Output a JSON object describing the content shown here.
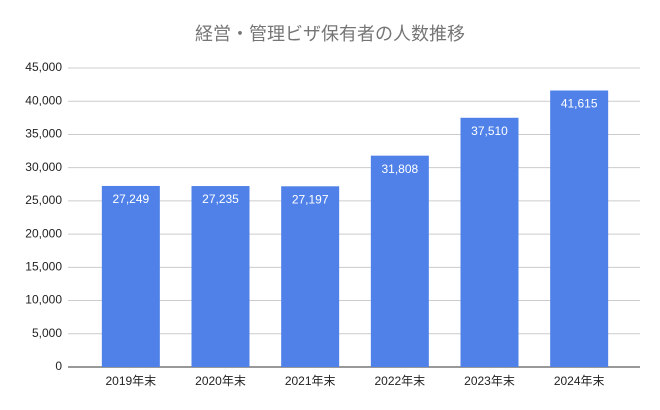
{
  "chart_data": {
    "type": "bar",
    "title": "経営・管理ビザ保有者の人数推移",
    "categories": [
      "2019年末",
      "2020年末",
      "2021年末",
      "2022年末",
      "2023年末",
      "2024年末"
    ],
    "values": [
      27249,
      27235,
      27197,
      31808,
      37510,
      41615
    ],
    "value_labels": [
      "27,249",
      "27,235",
      "27,197",
      "31,808",
      "37,510",
      "41,615"
    ],
    "color": "#4f81e8",
    "ylim": [
      0,
      45000
    ],
    "yticks": [
      0,
      {
        "value": 5000,
        "label": "5,000"
      },
      {
        "value": 10000,
        "label": "10,000"
      },
      {
        "value": 15000,
        "label": "15,000"
      },
      {
        "value": 20000,
        "label": "20,000"
      },
      {
        "value": 25000,
        "label": "25,000"
      },
      {
        "value": 30000,
        "label": "30,000"
      },
      {
        "value": 35000,
        "label": "35,000"
      },
      {
        "value": 40000,
        "label": "40,000"
      },
      {
        "value": 45000,
        "label": "45,000"
      }
    ],
    "grid": true
  }
}
